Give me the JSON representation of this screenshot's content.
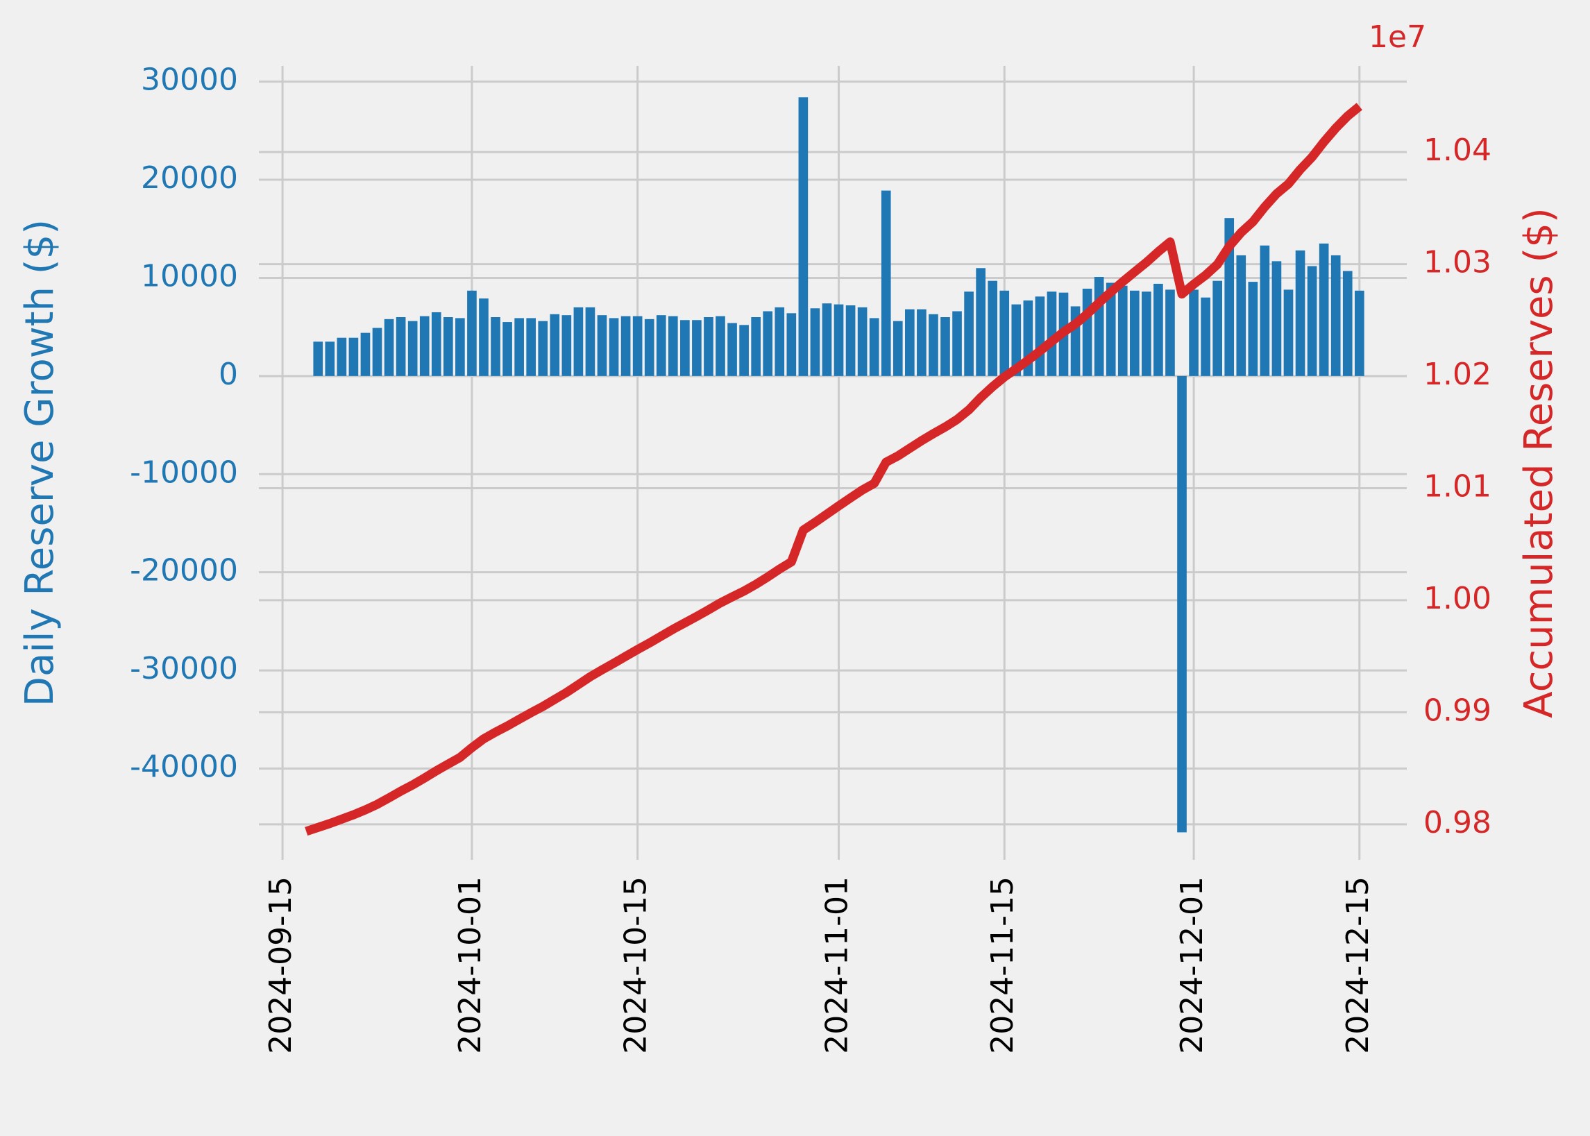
{
  "chart_data": {
    "type": "bar",
    "ylabel": "Daily Reserve Growth ($)",
    "y2label": "Accumulated Reserves ($)",
    "y2_offset_label": "1e7",
    "x": [
      "2024-09-17",
      "2024-09-18",
      "2024-09-19",
      "2024-09-20",
      "2024-09-21",
      "2024-09-22",
      "2024-09-23",
      "2024-09-24",
      "2024-09-25",
      "2024-09-26",
      "2024-09-27",
      "2024-09-28",
      "2024-09-29",
      "2024-09-30",
      "2024-10-01",
      "2024-10-02",
      "2024-10-03",
      "2024-10-04",
      "2024-10-05",
      "2024-10-06",
      "2024-10-07",
      "2024-10-08",
      "2024-10-09",
      "2024-10-10",
      "2024-10-11",
      "2024-10-12",
      "2024-10-13",
      "2024-10-14",
      "2024-10-15",
      "2024-10-16",
      "2024-10-17",
      "2024-10-18",
      "2024-10-19",
      "2024-10-20",
      "2024-10-21",
      "2024-10-22",
      "2024-10-23",
      "2024-10-24",
      "2024-10-25",
      "2024-10-26",
      "2024-10-27",
      "2024-10-28",
      "2024-10-29",
      "2024-10-30",
      "2024-10-31",
      "2024-11-01",
      "2024-11-02",
      "2024-11-03",
      "2024-11-04",
      "2024-11-05",
      "2024-11-06",
      "2024-11-07",
      "2024-11-08",
      "2024-11-09",
      "2024-11-10",
      "2024-11-11",
      "2024-11-12",
      "2024-11-13",
      "2024-11-14",
      "2024-11-15",
      "2024-11-16",
      "2024-11-17",
      "2024-11-18",
      "2024-11-19",
      "2024-11-20",
      "2024-11-21",
      "2024-11-22",
      "2024-11-23",
      "2024-11-24",
      "2024-11-25",
      "2024-11-26",
      "2024-11-27",
      "2024-11-28",
      "2024-11-29",
      "2024-11-30",
      "2024-12-01",
      "2024-12-02",
      "2024-12-03",
      "2024-12-04",
      "2024-12-05",
      "2024-12-06",
      "2024-12-07",
      "2024-12-08",
      "2024-12-09",
      "2024-12-10",
      "2024-12-11",
      "2024-12-12",
      "2024-12-13",
      "2024-12-14",
      "2024-12-15"
    ],
    "series": [
      {
        "type": "bar",
        "color": "#1f77b4",
        "values": [
          null,
          3500,
          3500,
          3900,
          3900,
          4400,
          4900,
          5800,
          6000,
          5600,
          6100,
          6500,
          6000,
          5900,
          8700,
          7900,
          6000,
          5500,
          5900,
          5900,
          5600,
          6300,
          6200,
          7000,
          7000,
          6200,
          5900,
          6100,
          6100,
          5800,
          6200,
          6100,
          5700,
          5700,
          6000,
          6100,
          5400,
          5200,
          6000,
          6600,
          7000,
          6400,
          28400,
          6900,
          7400,
          7300,
          7200,
          7000,
          5900,
          18900,
          5600,
          6800,
          6800,
          6300,
          6000,
          6600,
          8600,
          11000,
          9700,
          8700,
          7300,
          7700,
          8100,
          8600,
          8500,
          7100,
          8900,
          10100,
          9500,
          9200,
          8700,
          8600,
          9400,
          8800,
          -46500,
          8800,
          8000,
          9700,
          16100,
          12300,
          9600,
          13300,
          11700,
          8800,
          12800,
          11200,
          13500,
          12300,
          10700,
          8700
        ]
      },
      {
        "type": "line",
        "axis": "y2",
        "color": "#d62728",
        "values": [
          9793700,
          9797200,
          9800700,
          9804600,
          9808500,
          9812900,
          9817800,
          9823600,
          9829600,
          9835200,
          9841300,
          9847800,
          9853800,
          9859700,
          9868400,
          9876300,
          9882300,
          9887800,
          9893700,
          9899600,
          9905200,
          9911500,
          9917700,
          9924700,
          9931700,
          9937900,
          9943800,
          9949900,
          9956000,
          9961800,
          9968000,
          9974100,
          9979800,
          9985500,
          9991500,
          9997600,
          10003000,
          10008200,
          10014200,
          10020800,
          10027800,
          10034200,
          10062600,
          10069500,
          10076900,
          10084200,
          10091400,
          10098400,
          10104300,
          10123200,
          10128800,
          10135600,
          10142400,
          10148700,
          10154700,
          10161300,
          10169900,
          10180900,
          10190600,
          10199300,
          10206600,
          10214300,
          10222400,
          10231000,
          10239500,
          10246600,
          10255500,
          10265600,
          10275100,
          10284300,
          10293000,
          10301600,
          10311000,
          10319800,
          10273300,
          10282100,
          10290100,
          10299800,
          10315900,
          10328200,
          10337800,
          10351100,
          10362800,
          10371600,
          10384400,
          10395600,
          10409100,
          10421400,
          10432100,
          10440800
        ]
      }
    ],
    "xlim": [
      "2024-09-13",
      "2024-12-19"
    ],
    "xticks": [
      "2024-09-15",
      "2024-10-01",
      "2024-10-15",
      "2024-11-01",
      "2024-11-15",
      "2024-12-01",
      "2024-12-15"
    ],
    "ylim": [
      -49300,
      31600
    ],
    "yticks": [
      -40000,
      -30000,
      -20000,
      -10000,
      0,
      10000,
      20000,
      30000
    ],
    "y2lim": [
      9768300,
      10476900
    ],
    "y2ticks": [
      {
        "value": 9800000,
        "label": "0.98"
      },
      {
        "value": 9900000,
        "label": "0.99"
      },
      {
        "value": 10000000,
        "label": "1.00"
      },
      {
        "value": 10100000,
        "label": "1.01"
      },
      {
        "value": 10200000,
        "label": "1.02"
      },
      {
        "value": 10300000,
        "label": "1.03"
      },
      {
        "value": 10400000,
        "label": "1.04"
      }
    ],
    "grid": true
  }
}
